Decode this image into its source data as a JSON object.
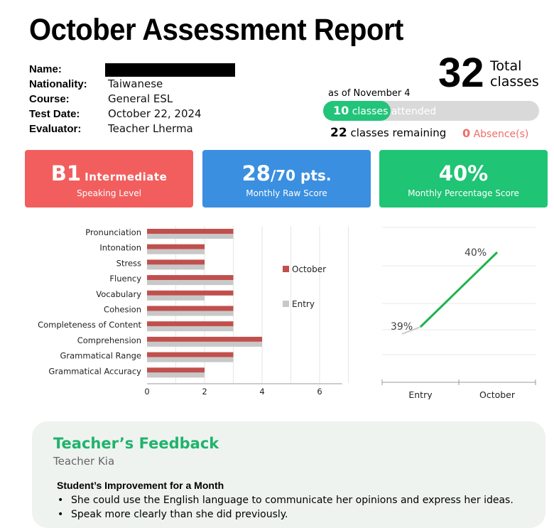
{
  "report": {
    "title": "October Assessment Report"
  },
  "student_info": {
    "name_label": "Name:",
    "name_value": "",
    "nationality_label": "Nationality:",
    "nationality_value": "Taiwanese",
    "course_label": "Course:",
    "course_value": "General ESL",
    "test_date_label": "Test Date:",
    "test_date_value": "October 22, 2024",
    "evaluator_label": "Evaluator:",
    "evaluator_value": "Teacher Lherma"
  },
  "attendance": {
    "total": "32",
    "total_line1": "Total",
    "total_line2": "classes",
    "as_of": "as of November 4",
    "attended_count": "10",
    "attended_text": "classes attended",
    "attended_fraction": 0.3125,
    "remaining_count": "22",
    "remaining_text": "classes remaining",
    "absence_count": "0",
    "absence_text": "Absence(s)"
  },
  "cards": {
    "level": {
      "value": "B1",
      "descriptor": "Intermediate",
      "label": "Speaking Level",
      "color": "#f25e5e"
    },
    "raw": {
      "value": "28",
      "suffix": "/70 pts.",
      "label": "Monthly Raw Score",
      "color": "#3a8fe0"
    },
    "pct": {
      "value": "40%",
      "label": "Monthly Percentage Score",
      "color": "#1fc474"
    }
  },
  "chart_data": [
    {
      "type": "bar",
      "orientation": "horizontal",
      "categories": [
        "Pronunciation",
        "Intonation",
        "Stress",
        "Fluency",
        "Vocabulary",
        "Cohesion",
        "Completeness of Content",
        "Comprehension",
        "Grammatical Range",
        "Grammatical Accuracy"
      ],
      "series": [
        {
          "name": "October",
          "values": [
            3,
            2,
            2,
            3,
            3,
            3,
            3,
            4,
            3,
            2
          ],
          "color": "#c0504d"
        },
        {
          "name": "Entry",
          "values": [
            3,
            2,
            2,
            3,
            2,
            3,
            3,
            4,
            3,
            2
          ],
          "color": "#c8c8c8"
        }
      ],
      "x_ticks": [
        "0",
        "2",
        "4",
        "6"
      ],
      "xlim": [
        0,
        7
      ],
      "grid": true,
      "legend": "right"
    },
    {
      "type": "line",
      "categories": [
        "Entry",
        "October"
      ],
      "series": [
        {
          "values": [
            39,
            40
          ],
          "labels": [
            "39%",
            "40%"
          ],
          "color": "#1fb34e"
        }
      ],
      "grid": true,
      "legend": "none"
    }
  ],
  "feedback": {
    "title": "Teacher’s Feedback",
    "teacher": "Teacher Kia",
    "heading": "Student’s Improvement for a Month",
    "items": [
      "She could use the English language to communicate her opinions and express her ideas.",
      "Speak more clearly than she did previously."
    ]
  }
}
